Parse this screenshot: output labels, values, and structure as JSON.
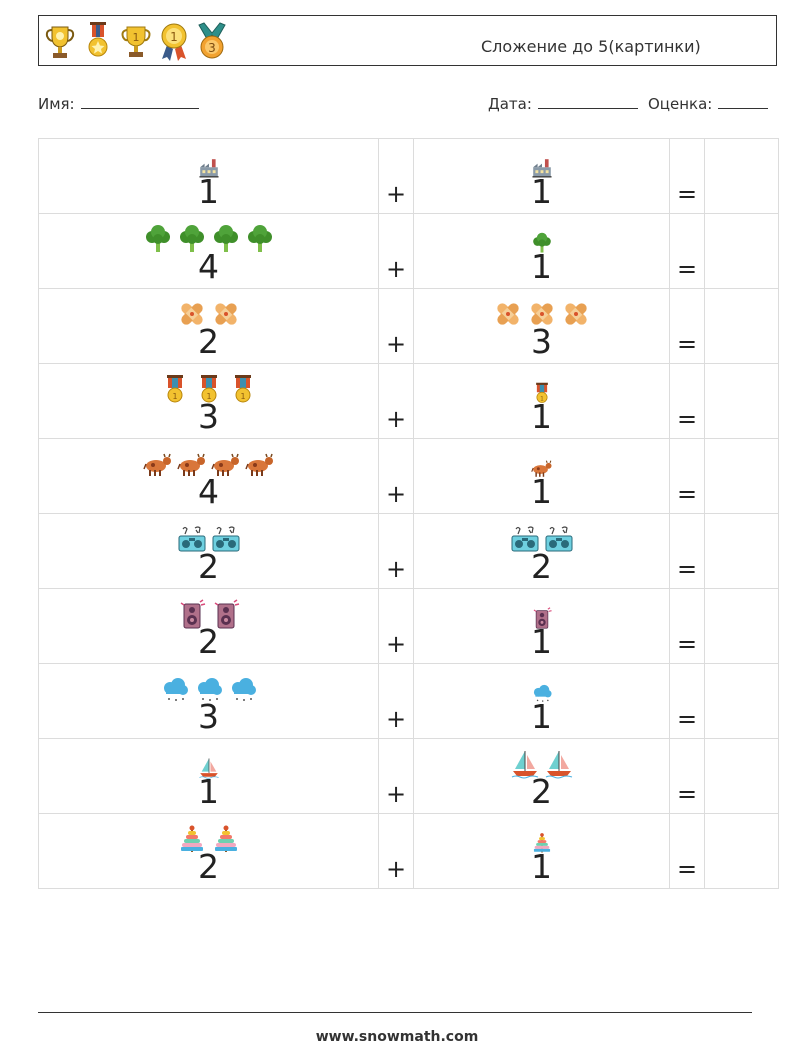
{
  "header": {
    "title": "Сложение до 5(картинки)",
    "icons": [
      "trophy-icon",
      "medal-star-icon",
      "cup-first-icon",
      "medal-ribbon-first-icon",
      "medal-third-icon"
    ]
  },
  "fields": {
    "name_label": "Имя:",
    "date_label": "Дата:",
    "grade_label": "Оценка:"
  },
  "symbols": {
    "plus": "+",
    "equals": "="
  },
  "rows": [
    {
      "icon": "factory-icon",
      "a": "1",
      "b": "1"
    },
    {
      "icon": "broccoli-icon",
      "a": "4",
      "b": "1"
    },
    {
      "icon": "bandage-icon",
      "a": "2",
      "b": "3"
    },
    {
      "icon": "medal-icon",
      "a": "3",
      "b": "1"
    },
    {
      "icon": "cow-icon",
      "a": "4",
      "b": "1"
    },
    {
      "icon": "radio-icon",
      "a": "2",
      "b": "2"
    },
    {
      "icon": "speaker-icon",
      "a": "2",
      "b": "1"
    },
    {
      "icon": "cloud-snow-icon",
      "a": "3",
      "b": "1"
    },
    {
      "icon": "sailboat-icon",
      "a": "1",
      "b": "2"
    },
    {
      "icon": "ring-tower-icon",
      "a": "2",
      "b": "1"
    }
  ],
  "footer": {
    "site": "www.snowmath.com"
  }
}
